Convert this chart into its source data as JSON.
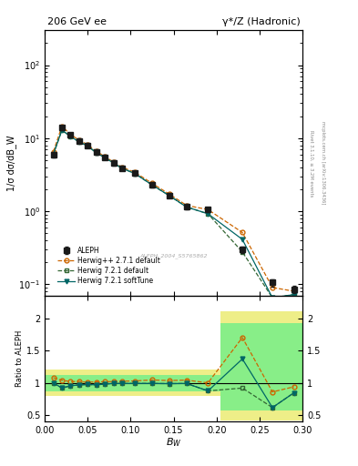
{
  "title_left": "206 GeV ee",
  "title_right": "γ*/Z (Hadronic)",
  "xlabel": "B_{W}",
  "ylabel_main": "1/σ dσ/dB_W",
  "ylabel_ratio": "Ratio to ALEPH",
  "right_label_top": "Rivet 3.1.10, ≥ 3.2M events",
  "right_label_bot": "mcplots.cern.ch [arXiv:1306.3436]",
  "watermark": "ALEPH_2004_S5765862",
  "bw_centers": [
    0.01,
    0.02,
    0.03,
    0.04,
    0.05,
    0.06,
    0.07,
    0.08,
    0.09,
    0.105,
    0.125,
    0.145,
    0.165,
    0.19,
    0.23,
    0.265,
    0.29
  ],
  "aleph_y": [
    6.0,
    14.0,
    11.0,
    9.2,
    8.0,
    6.5,
    5.5,
    4.6,
    3.9,
    3.3,
    2.3,
    1.65,
    1.15,
    1.05,
    0.3,
    0.105,
    0.085
  ],
  "aleph_yerr": [
    0.5,
    1.0,
    0.8,
    0.7,
    0.6,
    0.5,
    0.4,
    0.35,
    0.3,
    0.25,
    0.18,
    0.12,
    0.09,
    0.08,
    0.03,
    0.012,
    0.01
  ],
  "herwig_pp_y": [
    6.5,
    14.6,
    11.2,
    9.4,
    8.1,
    6.6,
    5.6,
    4.7,
    4.0,
    3.4,
    2.4,
    1.71,
    1.2,
    1.05,
    0.51,
    0.09,
    0.08
  ],
  "herwig72d_y": [
    6.0,
    12.9,
    10.5,
    8.9,
    7.8,
    6.3,
    5.4,
    4.56,
    3.86,
    3.27,
    2.28,
    1.63,
    1.14,
    0.92,
    0.276,
    0.065,
    0.072
  ],
  "herwig72s_y": [
    6.0,
    12.9,
    10.5,
    8.9,
    7.8,
    6.3,
    5.4,
    4.56,
    3.86,
    3.27,
    2.28,
    1.63,
    1.14,
    0.92,
    0.41,
    0.065,
    0.072
  ],
  "ratio_herwig_pp": [
    1.08,
    1.04,
    1.02,
    1.02,
    1.01,
    1.015,
    1.018,
    1.02,
    1.026,
    1.03,
    1.045,
    1.036,
    1.043,
    1.0,
    1.7,
    0.86,
    0.94
  ],
  "ratio_herwig72d": [
    1.0,
    0.92,
    0.955,
    0.968,
    0.975,
    0.969,
    0.982,
    0.991,
    0.99,
    0.991,
    0.991,
    0.988,
    0.991,
    0.876,
    0.92,
    0.619,
    0.847
  ],
  "ratio_herwig72s": [
    1.0,
    0.92,
    0.955,
    0.968,
    0.975,
    0.969,
    0.982,
    0.991,
    0.99,
    0.991,
    0.991,
    0.988,
    0.991,
    0.876,
    1.37,
    0.619,
    0.847
  ],
  "bins_lo": [
    0.0,
    0.155,
    0.205,
    0.255
  ],
  "bins_hi": [
    0.155,
    0.205,
    0.255,
    0.3
  ],
  "yellow_lo": [
    0.8,
    0.8,
    0.42,
    0.42
  ],
  "yellow_hi": [
    1.2,
    1.2,
    2.1,
    2.1
  ],
  "green_lo": [
    0.875,
    0.875,
    0.57,
    0.57
  ],
  "green_hi": [
    1.125,
    1.125,
    1.92,
    1.92
  ],
  "color_aleph": "#1a1a1a",
  "color_herwig_pp": "#cc6600",
  "color_herwig72d": "#336633",
  "color_herwig72s": "#006666",
  "color_yellow": "#eeee88",
  "color_green": "#88ee88",
  "xlim": [
    0.0,
    0.3
  ],
  "ylim_main": [
    0.07,
    300
  ],
  "ylim_ratio": [
    0.4,
    2.35
  ]
}
